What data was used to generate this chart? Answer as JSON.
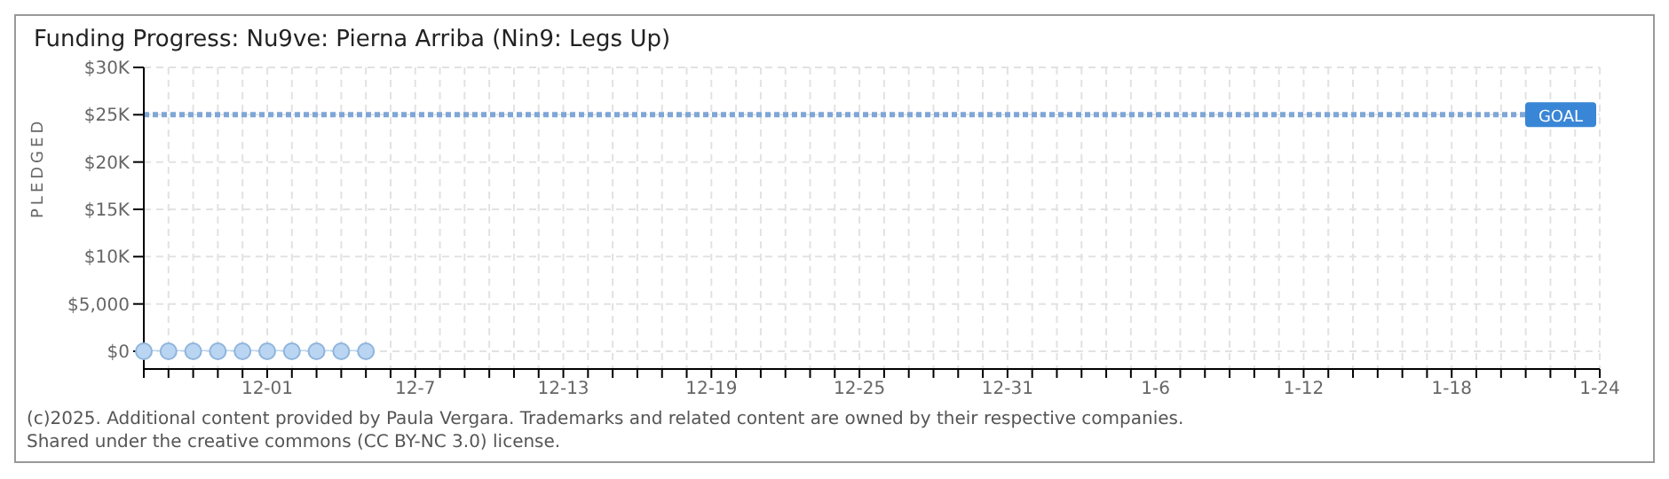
{
  "chart_data": {
    "type": "line",
    "title": "Funding Progress: Nu9ve: Pierna Arriba (Nin9: Legs Up)",
    "ylabel": "PLEDGED",
    "x": [
      "2024-11-26",
      "2024-11-27",
      "2024-11-28",
      "2024-11-29",
      "2024-11-30",
      "2024-12-01",
      "2024-12-02",
      "2024-12-03",
      "2024-12-04",
      "2024-12-05"
    ],
    "series": [
      {
        "color": "#b9d5f2",
        "values": [
          0,
          0,
          0,
          0,
          0,
          0,
          0,
          0,
          0,
          0
        ]
      }
    ],
    "marker": "circle",
    "xlim": [
      "2024-11-26",
      "2025-01-24"
    ],
    "xticks": [
      {
        "value": "2024-11-26",
        "label": null
      },
      {
        "value": "2024-11-27",
        "label": null
      },
      {
        "value": "2024-11-28",
        "label": null
      },
      {
        "value": "2024-11-29",
        "label": null
      },
      {
        "value": "2024-11-30",
        "label": null
      },
      {
        "value": "2024-12-01",
        "label": "12-01"
      },
      {
        "value": "2024-12-02",
        "label": null
      },
      {
        "value": "2024-12-03",
        "label": null
      },
      {
        "value": "2024-12-04",
        "label": null
      },
      {
        "value": "2024-12-05",
        "label": null
      },
      {
        "value": "2024-12-06",
        "label": null
      },
      {
        "value": "2024-12-07",
        "label": "12-7"
      },
      {
        "value": "2024-12-08",
        "label": null
      },
      {
        "value": "2024-12-09",
        "label": null
      },
      {
        "value": "2024-12-10",
        "label": null
      },
      {
        "value": "2024-12-11",
        "label": null
      },
      {
        "value": "2024-12-12",
        "label": null
      },
      {
        "value": "2024-12-13",
        "label": "12-13"
      },
      {
        "value": "2024-12-14",
        "label": null
      },
      {
        "value": "2024-12-15",
        "label": null
      },
      {
        "value": "2024-12-16",
        "label": null
      },
      {
        "value": "2024-12-17",
        "label": null
      },
      {
        "value": "2024-12-18",
        "label": null
      },
      {
        "value": "2024-12-19",
        "label": "12-19"
      },
      {
        "value": "2024-12-20",
        "label": null
      },
      {
        "value": "2024-12-21",
        "label": null
      },
      {
        "value": "2024-12-22",
        "label": null
      },
      {
        "value": "2024-12-23",
        "label": null
      },
      {
        "value": "2024-12-24",
        "label": null
      },
      {
        "value": "2024-12-25",
        "label": "12-25"
      },
      {
        "value": "2024-12-26",
        "label": null
      },
      {
        "value": "2024-12-27",
        "label": null
      },
      {
        "value": "2024-12-28",
        "label": null
      },
      {
        "value": "2024-12-29",
        "label": null
      },
      {
        "value": "2024-12-30",
        "label": null
      },
      {
        "value": "2024-12-31",
        "label": "12-31"
      },
      {
        "value": "2025-01-01",
        "label": null
      },
      {
        "value": "2025-01-02",
        "label": null
      },
      {
        "value": "2025-01-03",
        "label": null
      },
      {
        "value": "2025-01-04",
        "label": null
      },
      {
        "value": "2025-01-05",
        "label": null
      },
      {
        "value": "2025-01-06",
        "label": "1-6"
      },
      {
        "value": "2025-01-07",
        "label": null
      },
      {
        "value": "2025-01-08",
        "label": null
      },
      {
        "value": "2025-01-09",
        "label": null
      },
      {
        "value": "2025-01-10",
        "label": null
      },
      {
        "value": "2025-01-11",
        "label": null
      },
      {
        "value": "2025-01-12",
        "label": "1-12"
      },
      {
        "value": "2025-01-13",
        "label": null
      },
      {
        "value": "2025-01-14",
        "label": null
      },
      {
        "value": "2025-01-15",
        "label": null
      },
      {
        "value": "2025-01-16",
        "label": null
      },
      {
        "value": "2025-01-17",
        "label": null
      },
      {
        "value": "2025-01-18",
        "label": "1-18"
      },
      {
        "value": "2025-01-19",
        "label": null
      },
      {
        "value": "2025-01-20",
        "label": null
      },
      {
        "value": "2025-01-21",
        "label": null
      },
      {
        "value": "2025-01-22",
        "label": null
      },
      {
        "value": "2025-01-23",
        "label": null
      },
      {
        "value": "2025-01-24",
        "label": "1-24"
      }
    ],
    "ylim": [
      0,
      30000
    ],
    "yticks": [
      {
        "value": 0,
        "label": "$0"
      },
      {
        "value": 5000,
        "label": "$5,000"
      },
      {
        "value": 10000,
        "label": "$10K"
      },
      {
        "value": 15000,
        "label": "$15K"
      },
      {
        "value": 20000,
        "label": "$20K"
      },
      {
        "value": 25000,
        "label": "$25K"
      },
      {
        "value": 30000,
        "label": "$30K"
      }
    ],
    "grid": true,
    "ref_lines": [
      {
        "axis": "y",
        "value": 25000,
        "label": "GOAL",
        "color": "#7fa6d6",
        "line_style": "dotted"
      }
    ],
    "annotations": [
      "(c)2025. Additional content provided by Paula Vergara. Trademarks and related content are owned by their respective companies.",
      "Shared under the creative commons (CC BY-NC 3.0) license."
    ]
  }
}
